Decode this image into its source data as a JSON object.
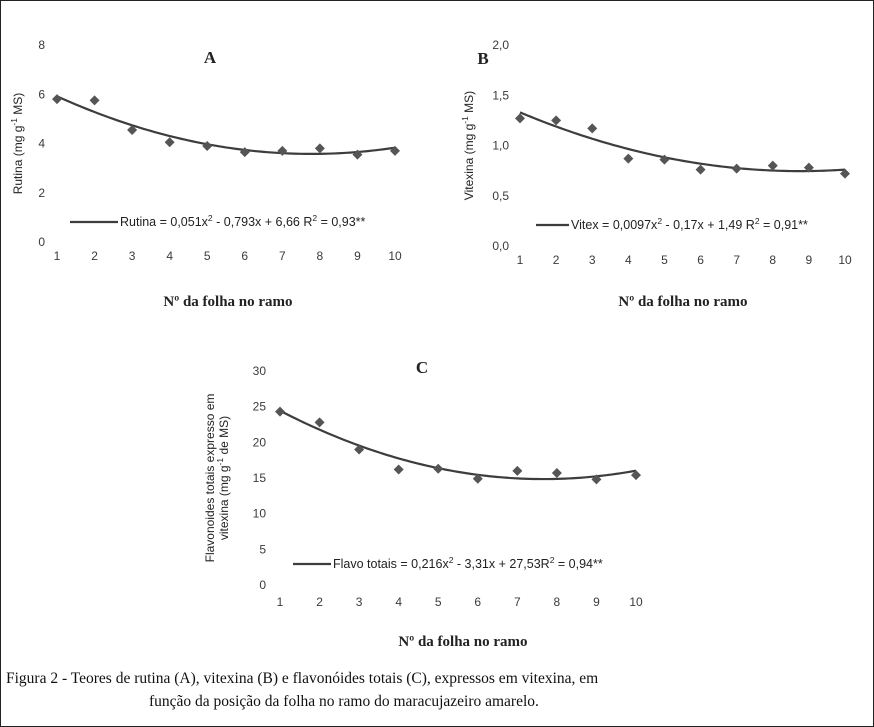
{
  "caption": {
    "label": "Figura 2 -",
    "line1": "Teores de rutina (A), vitexina (B) e flavonóides totais (C), expressos em vitexina, em",
    "line2": "função da posição da folha no ramo do maracujazeiro amarelo."
  },
  "chart_data": [
    {
      "type": "scatter",
      "panel": "A",
      "xlabel": "Nº da folha no ramo",
      "ylabel": "Rutina (mg g-1 MS)",
      "ylabel_main": "Rutina (mg g",
      "ylabel_sup": "-1",
      "ylabel_end": " MS)",
      "xlim": [
        1,
        10
      ],
      "ylim": [
        0,
        8
      ],
      "xticks": [
        1,
        2,
        3,
        4,
        5,
        6,
        7,
        8,
        9,
        10
      ],
      "xtick_labels": [
        "1",
        "2",
        "3",
        "4",
        "5",
        "6",
        "7",
        "8",
        "9",
        "10"
      ],
      "yticks": [
        0,
        2,
        4,
        6,
        8
      ],
      "ytick_labels": [
        "0",
        "2",
        "4",
        "6",
        "8"
      ],
      "x": [
        1,
        2,
        3,
        4,
        5,
        6,
        7,
        8,
        9,
        10
      ],
      "y": [
        5.8,
        5.75,
        4.55,
        4.05,
        3.9,
        3.65,
        3.7,
        3.8,
        3.55,
        3.7
      ],
      "fit": {
        "a": 0.051,
        "b": -0.793,
        "c": 6.66
      },
      "legend_name": "Rutina",
      "eq_a": " = 0,051x",
      "eq_b": " - 0,793x + 6,66 R",
      "eq_c": " = 0,93**",
      "sup2": "2",
      "legend_position": "bottom"
    },
    {
      "type": "scatter",
      "panel": "B",
      "xlabel": "Nº da folha no ramo",
      "ylabel": "Vitexina (mg g-1 MS)",
      "ylabel_main": "Vitexina (mg g",
      "ylabel_sup": "-1",
      "ylabel_end": " MS)",
      "xlim": [
        1,
        10
      ],
      "ylim": [
        0,
        2
      ],
      "xticks": [
        1,
        2,
        3,
        4,
        5,
        6,
        7,
        8,
        9,
        10
      ],
      "xtick_labels": [
        "1",
        "2",
        "3",
        "4",
        "5",
        "6",
        "7",
        "8",
        "9",
        "10"
      ],
      "yticks": [
        0,
        0.5,
        1,
        1.5,
        2
      ],
      "ytick_labels": [
        "0,0",
        "0,5",
        "1,0",
        "1,5",
        "2,0"
      ],
      "x": [
        1,
        2,
        3,
        4,
        5,
        6,
        7,
        8,
        9,
        10
      ],
      "y": [
        1.27,
        1.25,
        1.17,
        0.87,
        0.86,
        0.76,
        0.77,
        0.8,
        0.78,
        0.72
      ],
      "fit": {
        "a": 0.0097,
        "b": -0.17,
        "c": 1.49
      },
      "legend_name": "Vitex",
      "eq_a": " = 0,0097x",
      "eq_b": " - 0,17x + 1,49 R",
      "eq_c": " = 0,91**",
      "sup2": "2",
      "legend_position": "bottom"
    },
    {
      "type": "scatter",
      "panel": "C",
      "xlabel": "Nº da folha no ramo",
      "ylabel": "Flavonoides totais expresso em vitexina (mg g-1 de MS)",
      "ylabel_line1": "Flavonoides totais expresso em",
      "ylabel_main": "vitexina (mg g",
      "ylabel_sup": "-1",
      "ylabel_end": " de MS)",
      "xlim": [
        1,
        10
      ],
      "ylim": [
        0,
        30
      ],
      "xticks": [
        1,
        2,
        3,
        4,
        5,
        6,
        7,
        8,
        9,
        10
      ],
      "xtick_labels": [
        "1",
        "2",
        "3",
        "4",
        "5",
        "6",
        "7",
        "8",
        "9",
        "10"
      ],
      "yticks": [
        0,
        5,
        10,
        15,
        20,
        25,
        30
      ],
      "ytick_labels": [
        "0",
        "5",
        "10",
        "15",
        "20",
        "25",
        "30"
      ],
      "x": [
        1,
        2,
        3,
        4,
        5,
        6,
        7,
        8,
        9,
        10
      ],
      "y": [
        24.3,
        22.8,
        19.0,
        16.2,
        16.3,
        14.9,
        16.0,
        15.7,
        14.8,
        15.4
      ],
      "fit": {
        "a": 0.216,
        "b": -3.31,
        "c": 27.53
      },
      "legend_name": "Flavo totais",
      "eq_a": " = 0,216x",
      "eq_b": " - 3,31x + 27,53R",
      "eq_c": " = 0,94**",
      "sup2": "2",
      "legend_position": "bottom"
    }
  ]
}
